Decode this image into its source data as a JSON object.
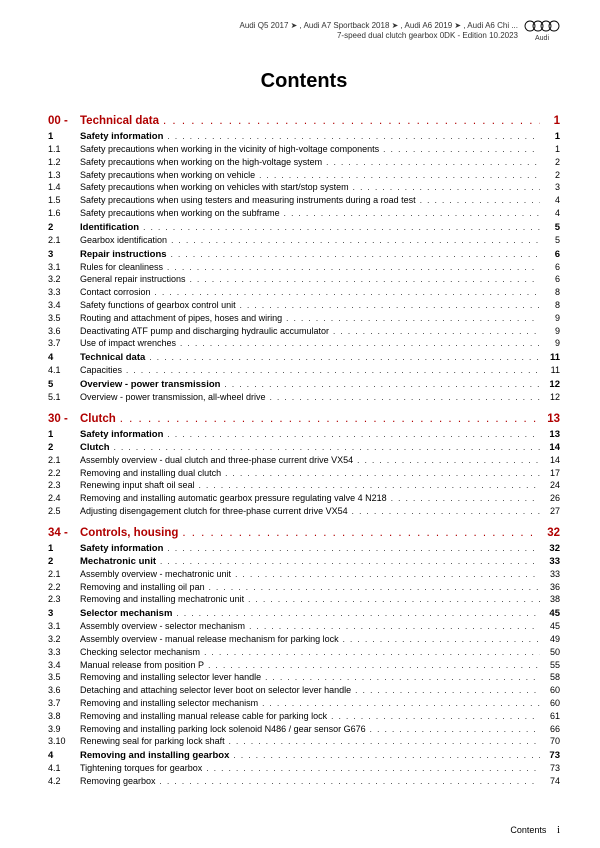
{
  "header": {
    "line1": "Audi Q5 2017 ➤ , Audi A7 Sportback 2018 ➤ , Audi A6 2019 ➤ , Audi A6 Chi ...",
    "line2": "7-speed dual clutch gearbox 0DK - Edition 10.2023",
    "brand": "Audi"
  },
  "title": "Contents",
  "footer": {
    "label": "Contents",
    "roman": "i"
  },
  "colors": {
    "chapter": "#b00000",
    "text": "#000000",
    "bg": "#ffffff"
  },
  "toc": [
    {
      "type": "chapter",
      "num": "00 -",
      "label": "Technical data",
      "page": "1"
    },
    {
      "type": "section",
      "num": "1",
      "label": "Safety information",
      "page": "1"
    },
    {
      "type": "sub",
      "num": "1.1",
      "label": "Safety precautions when working in the vicinity of high-voltage components",
      "page": "1"
    },
    {
      "type": "sub",
      "num": "1.2",
      "label": "Safety precautions when working on the high-voltage system",
      "page": "2"
    },
    {
      "type": "sub",
      "num": "1.3",
      "label": "Safety precautions when working on vehicle",
      "page": "2"
    },
    {
      "type": "sub",
      "num": "1.4",
      "label": "Safety precautions when working on vehicles with start/stop system",
      "page": "3"
    },
    {
      "type": "sub",
      "num": "1.5",
      "label": "Safety precautions when using testers and measuring instruments during a road test",
      "page": "4"
    },
    {
      "type": "sub",
      "num": "1.6",
      "label": "Safety precautions when working on the subframe",
      "page": "4"
    },
    {
      "type": "section",
      "num": "2",
      "label": "Identification",
      "page": "5"
    },
    {
      "type": "sub",
      "num": "2.1",
      "label": "Gearbox identification",
      "page": "5"
    },
    {
      "type": "section",
      "num": "3",
      "label": "Repair instructions",
      "page": "6"
    },
    {
      "type": "sub",
      "num": "3.1",
      "label": "Rules for cleanliness",
      "page": "6"
    },
    {
      "type": "sub",
      "num": "3.2",
      "label": "General repair instructions",
      "page": "6"
    },
    {
      "type": "sub",
      "num": "3.3",
      "label": "Contact corrosion",
      "page": "8"
    },
    {
      "type": "sub",
      "num": "3.4",
      "label": "Safety functions of gearbox control unit",
      "page": "8"
    },
    {
      "type": "sub",
      "num": "3.5",
      "label": "Routing and attachment of pipes, hoses and wiring",
      "page": "9"
    },
    {
      "type": "sub",
      "num": "3.6",
      "label": "Deactivating ATF pump and discharging hydraulic accumulator",
      "page": "9"
    },
    {
      "type": "sub",
      "num": "3.7",
      "label": "Use of impact wrenches",
      "page": "9"
    },
    {
      "type": "section",
      "num": "4",
      "label": "Technical data",
      "page": "11"
    },
    {
      "type": "sub",
      "num": "4.1",
      "label": "Capacities",
      "page": "11"
    },
    {
      "type": "section",
      "num": "5",
      "label": "Overview - power transmission",
      "page": "12"
    },
    {
      "type": "sub",
      "num": "5.1",
      "label": "Overview - power transmission, all-wheel drive",
      "page": "12"
    },
    {
      "type": "chapter",
      "num": "30 -",
      "label": "Clutch",
      "page": "13"
    },
    {
      "type": "section",
      "num": "1",
      "label": "Safety information",
      "page": "13"
    },
    {
      "type": "section",
      "num": "2",
      "label": "Clutch",
      "page": "14"
    },
    {
      "type": "sub",
      "num": "2.1",
      "label": "Assembly overview - dual clutch and three-phase current drive VX54",
      "page": "14"
    },
    {
      "type": "sub",
      "num": "2.2",
      "label": "Removing and installing dual clutch",
      "page": "17"
    },
    {
      "type": "sub",
      "num": "2.3",
      "label": "Renewing input shaft oil seal",
      "page": "24"
    },
    {
      "type": "sub",
      "num": "2.4",
      "label": "Removing and installing automatic gearbox pressure regulating valve 4 N218",
      "page": "26"
    },
    {
      "type": "sub",
      "num": "2.5",
      "label": "Adjusting disengagement clutch for three-phase current drive VX54",
      "page": "27"
    },
    {
      "type": "chapter",
      "num": "34 -",
      "label": "Controls, housing",
      "page": "32"
    },
    {
      "type": "section",
      "num": "1",
      "label": "Safety information",
      "page": "32"
    },
    {
      "type": "section",
      "num": "2",
      "label": "Mechatronic unit",
      "page": "33"
    },
    {
      "type": "sub",
      "num": "2.1",
      "label": "Assembly overview - mechatronic unit",
      "page": "33"
    },
    {
      "type": "sub",
      "num": "2.2",
      "label": "Removing and installing oil pan",
      "page": "36"
    },
    {
      "type": "sub",
      "num": "2.3",
      "label": "Removing and installing mechatronic unit",
      "page": "38"
    },
    {
      "type": "section",
      "num": "3",
      "label": "Selector mechanism",
      "page": "45"
    },
    {
      "type": "sub",
      "num": "3.1",
      "label": "Assembly overview - selector mechanism",
      "page": "45"
    },
    {
      "type": "sub",
      "num": "3.2",
      "label": "Assembly overview - manual release mechanism for parking lock",
      "page": "49"
    },
    {
      "type": "sub",
      "num": "3.3",
      "label": "Checking selector mechanism",
      "page": "50"
    },
    {
      "type": "sub",
      "num": "3.4",
      "label": "Manual release from position P",
      "page": "55"
    },
    {
      "type": "sub",
      "num": "3.5",
      "label": "Removing and installing selector lever handle",
      "page": "58"
    },
    {
      "type": "sub",
      "num": "3.6",
      "label": "Detaching and attaching selector lever boot on selector lever handle",
      "page": "60"
    },
    {
      "type": "sub",
      "num": "3.7",
      "label": "Removing and installing selector mechanism",
      "page": "60"
    },
    {
      "type": "sub",
      "num": "3.8",
      "label": "Removing and installing manual release cable for parking lock",
      "page": "61"
    },
    {
      "type": "sub",
      "num": "3.9",
      "label": "Removing and installing parking lock solenoid N486 / gear sensor G676",
      "page": "66"
    },
    {
      "type": "sub",
      "num": "3.10",
      "label": "Renewing seal for parking lock shaft",
      "page": "70"
    },
    {
      "type": "section",
      "num": "4",
      "label": "Removing and installing gearbox",
      "page": "73"
    },
    {
      "type": "sub",
      "num": "4.1",
      "label": "Tightening torques for gearbox",
      "page": "73"
    },
    {
      "type": "sub",
      "num": "4.2",
      "label": "Removing gearbox",
      "page": "74"
    }
  ]
}
